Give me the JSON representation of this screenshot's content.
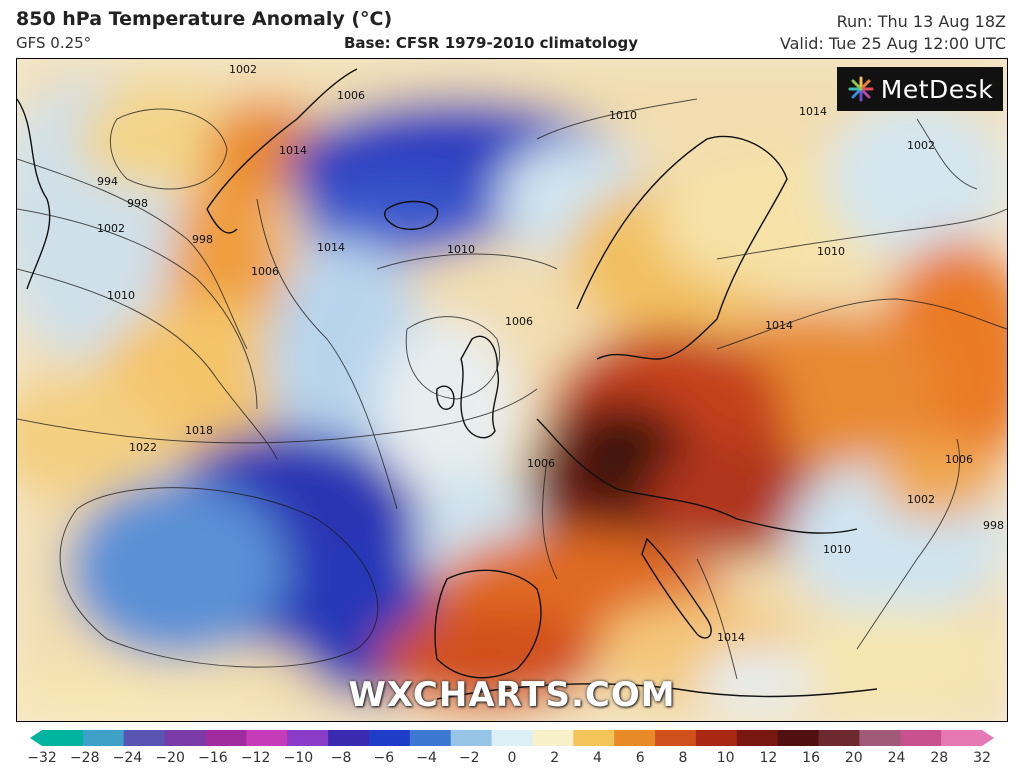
{
  "header": {
    "title": "850 hPa Temperature Anomaly (°C)",
    "model": "GFS 0.25°",
    "base": "Base: CFSR 1979-2010 climatology",
    "run": "Run: Thu 13 Aug 18Z",
    "valid": "Valid: Tue 25 Aug 12:00 UTC"
  },
  "map": {
    "logo_text": "MetDesk",
    "watermark": "WXCHARTS.COM",
    "isobar_labels": [
      "1002",
      "994",
      "998",
      "1002",
      "998",
      "1010",
      "1006",
      "1014",
      "1014",
      "1014",
      "1018",
      "1022",
      "1010",
      "1006",
      "1006",
      "1010",
      "1014",
      "1002",
      "1010",
      "1006",
      "1002",
      "1010",
      "1014",
      "998",
      "1006"
    ],
    "features": [
      "Greenland",
      "Iceland",
      "British Isles",
      "Scandinavia",
      "Iberia",
      "Italy",
      "North Africa"
    ]
  },
  "colorbar": {
    "ticks": [
      "−32",
      "−28",
      "−24",
      "−20",
      "−16",
      "−12",
      "−10",
      "−8",
      "−6",
      "−4",
      "−2",
      "0",
      "2",
      "4",
      "6",
      "8",
      "10",
      "12",
      "16",
      "20",
      "24",
      "28",
      "32"
    ],
    "colors": [
      "#00b4a0",
      "#3fa0c8",
      "#5a55b4",
      "#7a3aa8",
      "#a02ca0",
      "#c43cb8",
      "#8a3cc8",
      "#3a2ab0",
      "#1e3cc8",
      "#3c78d2",
      "#96c4e6",
      "#dceef6",
      "#f8f0c8",
      "#f2c45a",
      "#e98a28",
      "#d2501e",
      "#a82814",
      "#781810",
      "#501010",
      "#6e2830",
      "#a05a78",
      "#c8508c",
      "#e678b4"
    ]
  }
}
